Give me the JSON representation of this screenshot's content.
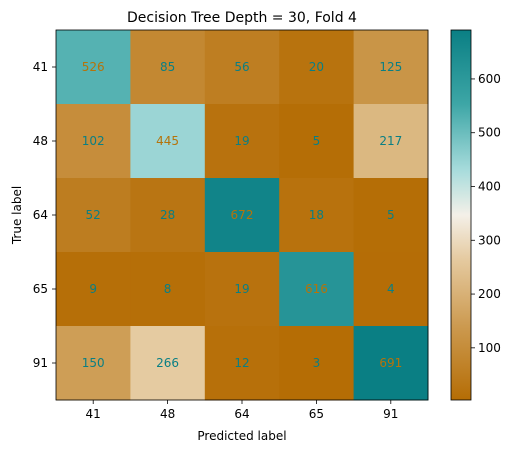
{
  "chart_data": {
    "type": "heatmap",
    "title": "Decision Tree Depth = 30, Fold 4",
    "xlabel": "Predicted label",
    "ylabel": "True label",
    "row_labels": [
      "41",
      "48",
      "64",
      "65",
      "91"
    ],
    "col_labels": [
      "41",
      "48",
      "64",
      "65",
      "91"
    ],
    "values": [
      [
        526,
        85,
        56,
        20,
        125
      ],
      [
        102,
        445,
        19,
        5,
        217
      ],
      [
        52,
        28,
        672,
        18,
        5
      ],
      [
        9,
        8,
        19,
        616,
        4
      ],
      [
        150,
        266,
        12,
        3,
        691
      ]
    ],
    "colormap": "BrBG",
    "colorbar": {
      "range": [
        3,
        691
      ],
      "ticks": [
        "100",
        "200",
        "300",
        "400",
        "500",
        "600"
      ]
    },
    "colors": {
      "low": "#b56d05",
      "mid": "#f4f0e8",
      "high": "#0a7f84",
      "text_dark_cell": "#0a7f84",
      "text_light_cell": "#b5730a"
    }
  }
}
